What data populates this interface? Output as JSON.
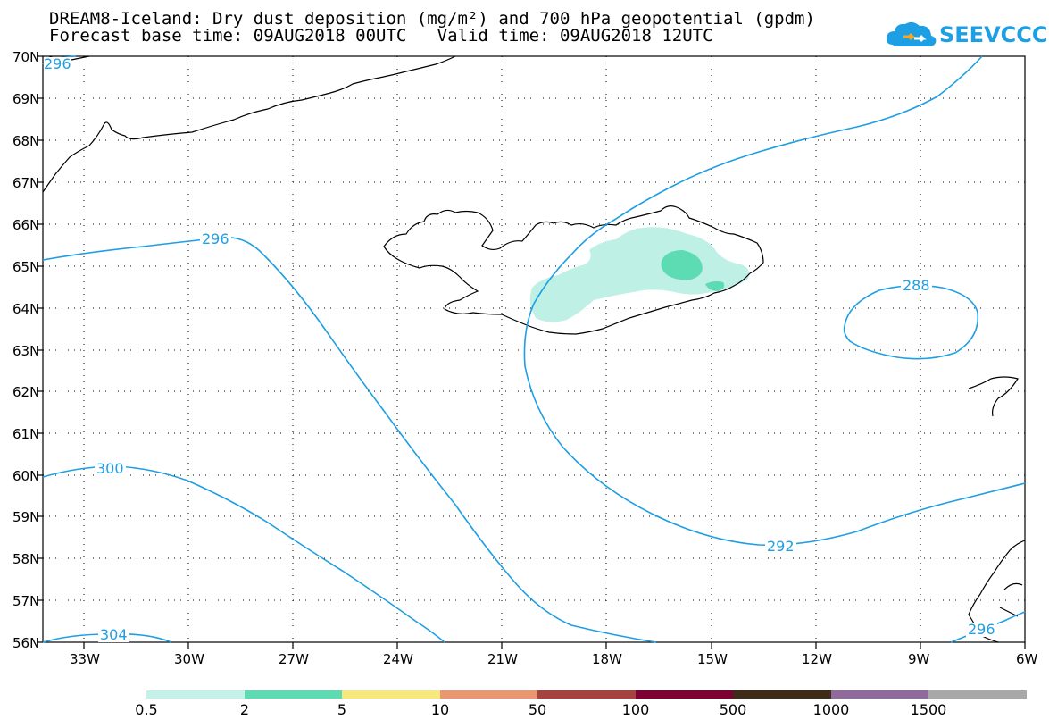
{
  "title": {
    "line1": "DREAM8-Iceland: Dry dust deposition (mg/m²) and 700 hPa geopotential (gpdm)",
    "line2": "Forecast base time: 09AUG2018 00UTC   Valid time: 09AUG2018 12UTC"
  },
  "logo": {
    "text": "SEEVCCC",
    "icon": "cloud-icon",
    "color": "#1e9ee3"
  },
  "axes": {
    "lat_labels": [
      "70N",
      "69N",
      "68N",
      "67N",
      "66N",
      "65N",
      "64N",
      "63N",
      "62N",
      "61N",
      "60N",
      "59N",
      "58N",
      "57N",
      "56N"
    ],
    "lon_labels": [
      "33W",
      "30W",
      "27W",
      "24W",
      "21W",
      "18W",
      "15W",
      "12W",
      "9W",
      "6W"
    ],
    "lat_range": [
      56,
      70
    ],
    "lon_range": [
      -34.2,
      -6
    ],
    "grid": "dotted"
  },
  "contours": {
    "color": "#1e9ee3",
    "labels": [
      "296",
      "296",
      "300",
      "304",
      "292",
      "288",
      "296"
    ]
  },
  "dust": {
    "levels_shown": [
      "0.5-2",
      "2-5"
    ],
    "colors": {
      "light": "#bff0e6",
      "medium": "#5ddcb4"
    }
  },
  "colorbar": {
    "labels": [
      "0.5",
      "2",
      "5",
      "10",
      "50",
      "100",
      "500",
      "1000",
      "1500"
    ],
    "colors": [
      "#c4f1ea",
      "#5ddcb4",
      "#f6e87a",
      "#ea9670",
      "#a5443f",
      "#7f0033",
      "#3e2b18",
      "#8f6a9b",
      "#a8a8a8"
    ]
  }
}
